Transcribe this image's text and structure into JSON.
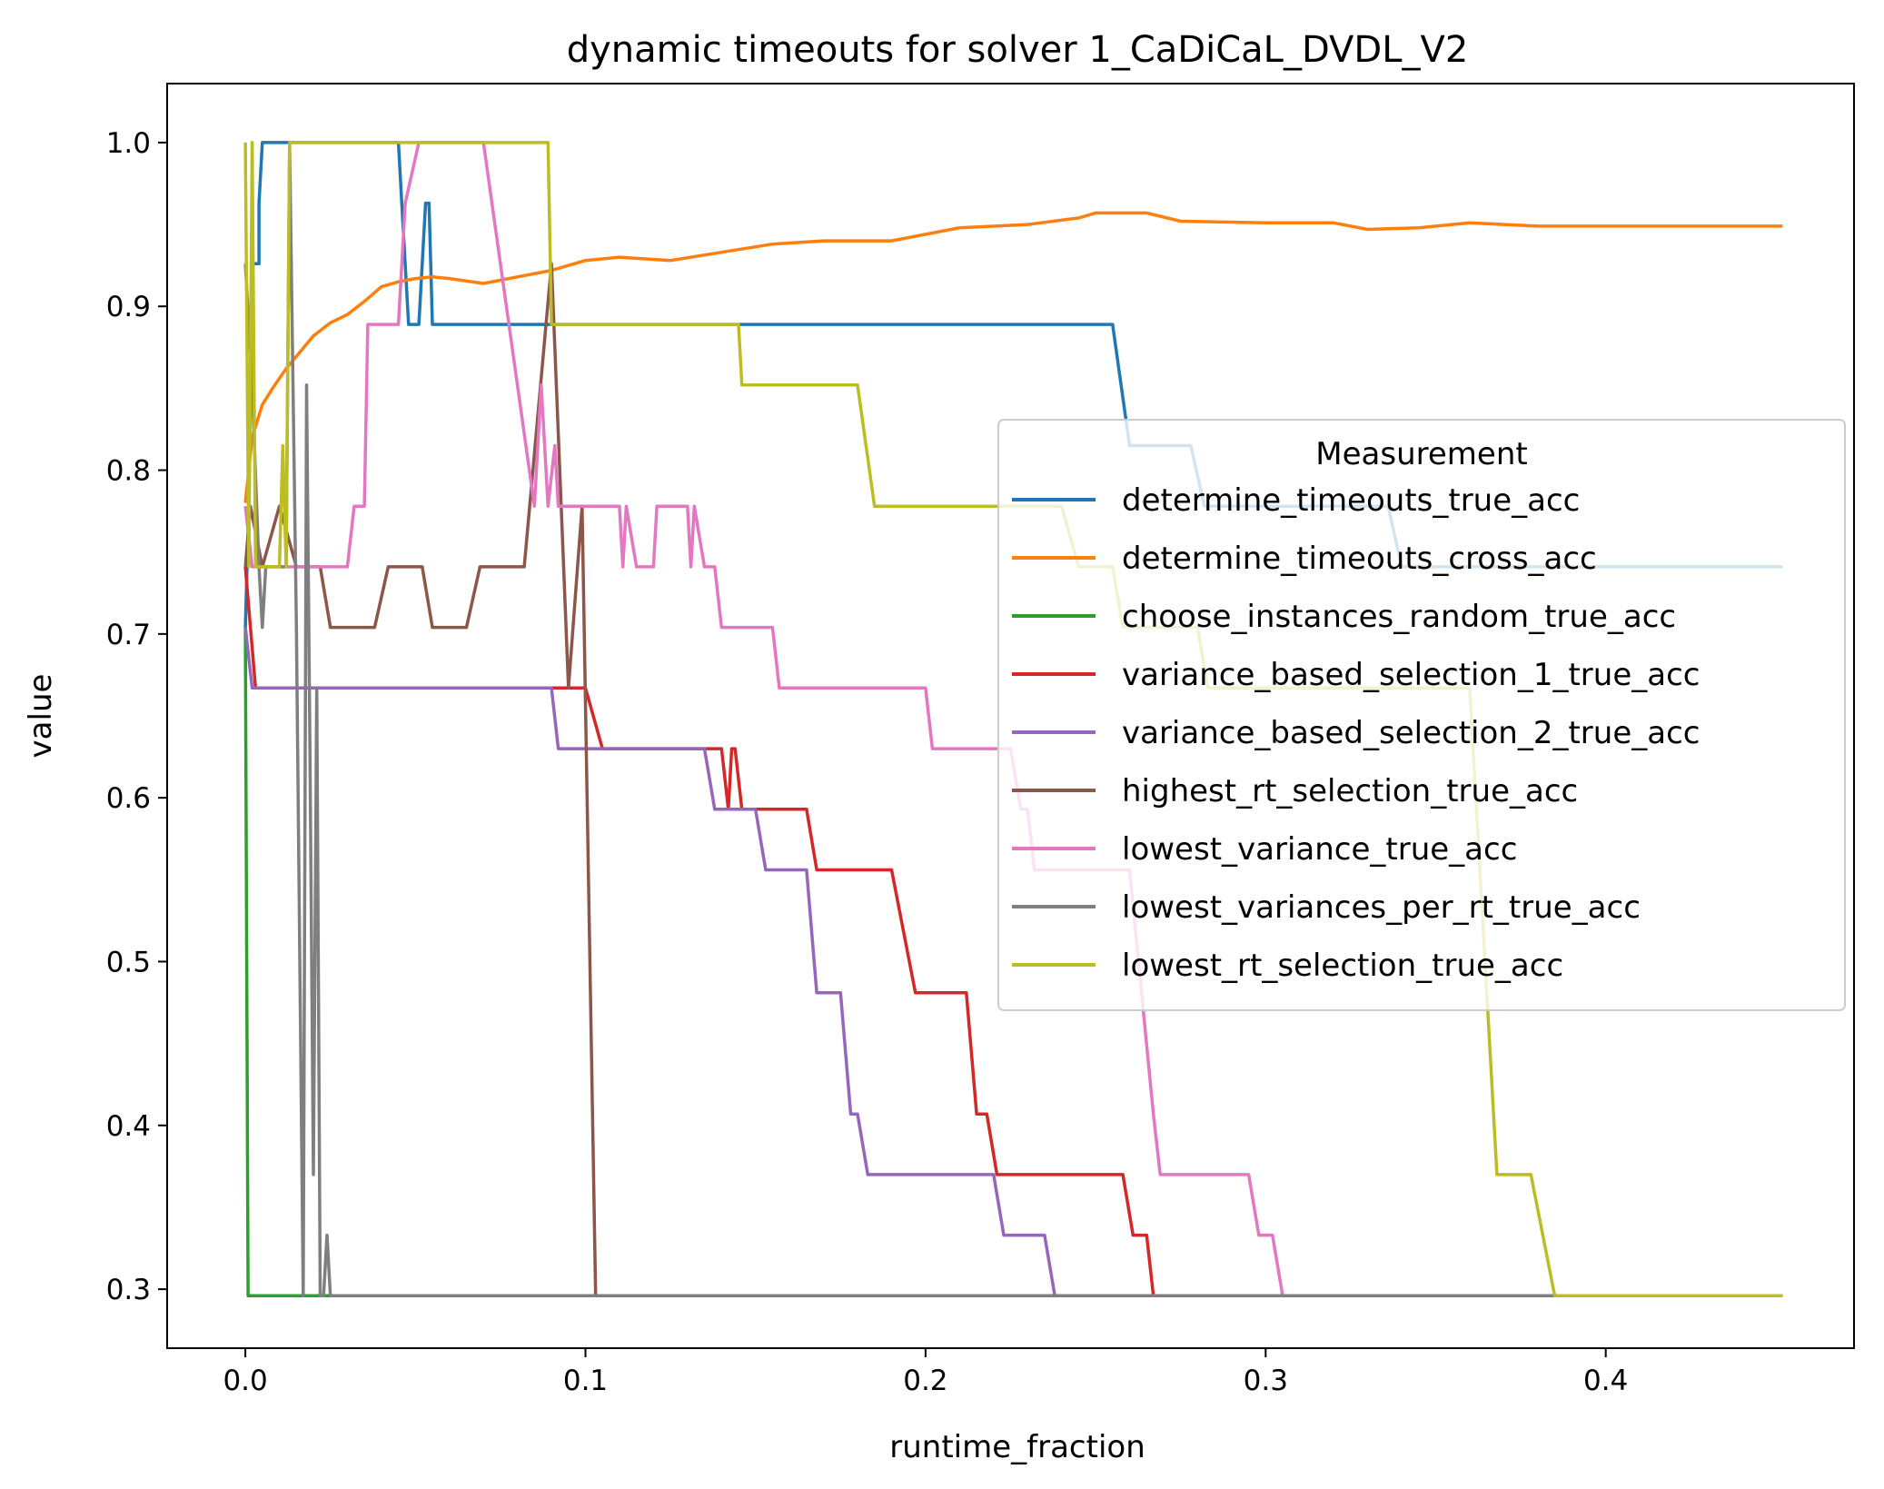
{
  "chart_data": {
    "type": "line",
    "title": "dynamic timeouts for solver 1_CaDiCaL_DVDL_V2",
    "xlabel": "runtime_fraction",
    "ylabel": "value",
    "xlim": [
      -0.023,
      0.473
    ],
    "ylim": [
      0.264,
      1.036
    ],
    "xticks": [
      0.0,
      0.1,
      0.2,
      0.3,
      0.4
    ],
    "xtick_labels": [
      "0.0",
      "0.1",
      "0.2",
      "0.3",
      "0.4"
    ],
    "yticks": [
      0.3,
      0.4,
      0.5,
      0.6,
      0.7,
      0.8,
      0.9,
      1.0
    ],
    "ytick_labels": [
      "0.3",
      "0.4",
      "0.5",
      "0.6",
      "0.7",
      "0.8",
      "0.9",
      "1.0"
    ],
    "grid": false,
    "legend": {
      "title": "Measurement",
      "placement": "center-right"
    },
    "series": [
      {
        "name": "determine_timeouts_true_acc",
        "color": "#1f77b4",
        "points": [
          [
            0,
            0.704
          ],
          [
            0.001,
            0.78
          ],
          [
            0.002,
            0.926
          ],
          [
            0.004,
            0.926
          ],
          [
            0.004,
            0.963
          ],
          [
            0.005,
            1.0
          ],
          [
            0.045,
            1.0
          ],
          [
            0.046,
            0.963
          ],
          [
            0.048,
            0.889
          ],
          [
            0.051,
            0.889
          ],
          [
            0.053,
            0.963
          ],
          [
            0.054,
            0.963
          ],
          [
            0.055,
            0.889
          ],
          [
            0.255,
            0.889
          ],
          [
            0.26,
            0.815
          ],
          [
            0.278,
            0.815
          ],
          [
            0.282,
            0.778
          ],
          [
            0.336,
            0.778
          ],
          [
            0.34,
            0.741
          ],
          [
            0.452,
            0.741
          ]
        ]
      },
      {
        "name": "determine_timeouts_cross_acc",
        "color": "#ff7f0e",
        "points": [
          [
            0,
            0.78
          ],
          [
            0.002,
            0.82
          ],
          [
            0.005,
            0.84
          ],
          [
            0.008,
            0.85
          ],
          [
            0.012,
            0.862
          ],
          [
            0.016,
            0.872
          ],
          [
            0.02,
            0.882
          ],
          [
            0.025,
            0.89
          ],
          [
            0.03,
            0.895
          ],
          [
            0.035,
            0.903
          ],
          [
            0.04,
            0.912
          ],
          [
            0.045,
            0.915
          ],
          [
            0.05,
            0.917
          ],
          [
            0.055,
            0.918
          ],
          [
            0.06,
            0.917
          ],
          [
            0.07,
            0.914
          ],
          [
            0.08,
            0.918
          ],
          [
            0.09,
            0.922
          ],
          [
            0.1,
            0.928
          ],
          [
            0.11,
            0.93
          ],
          [
            0.125,
            0.928
          ],
          [
            0.14,
            0.933
          ],
          [
            0.155,
            0.938
          ],
          [
            0.17,
            0.94
          ],
          [
            0.19,
            0.94
          ],
          [
            0.21,
            0.948
          ],
          [
            0.23,
            0.95
          ],
          [
            0.245,
            0.954
          ],
          [
            0.25,
            0.957
          ],
          [
            0.265,
            0.957
          ],
          [
            0.275,
            0.952
          ],
          [
            0.3,
            0.951
          ],
          [
            0.32,
            0.951
          ],
          [
            0.33,
            0.947
          ],
          [
            0.345,
            0.948
          ],
          [
            0.36,
            0.951
          ],
          [
            0.37,
            0.95
          ],
          [
            0.38,
            0.949
          ],
          [
            0.452,
            0.949
          ]
        ]
      },
      {
        "name": "choose_instances_random_true_acc",
        "color": "#2ca02c",
        "points": [
          [
            0,
            0.704
          ],
          [
            0.0008,
            0.296
          ],
          [
            0.452,
            0.296
          ]
        ]
      },
      {
        "name": "variance_based_selection_1_true_acc",
        "color": "#d62728",
        "points": [
          [
            0,
            0.741
          ],
          [
            0.0015,
            0.704
          ],
          [
            0.003,
            0.667
          ],
          [
            0.095,
            0.667
          ],
          [
            0.1,
            0.667
          ],
          [
            0.105,
            0.63
          ],
          [
            0.14,
            0.63
          ],
          [
            0.142,
            0.593
          ],
          [
            0.143,
            0.63
          ],
          [
            0.144,
            0.63
          ],
          [
            0.146,
            0.593
          ],
          [
            0.165,
            0.593
          ],
          [
            0.168,
            0.556
          ],
          [
            0.19,
            0.556
          ],
          [
            0.197,
            0.481
          ],
          [
            0.212,
            0.481
          ],
          [
            0.215,
            0.407
          ],
          [
            0.218,
            0.407
          ],
          [
            0.221,
            0.37
          ],
          [
            0.258,
            0.37
          ],
          [
            0.261,
            0.333
          ],
          [
            0.265,
            0.333
          ],
          [
            0.267,
            0.296
          ],
          [
            0.452,
            0.296
          ]
        ]
      },
      {
        "name": "variance_based_selection_2_true_acc",
        "color": "#9467bd",
        "points": [
          [
            0,
            0.704
          ],
          [
            0.002,
            0.667
          ],
          [
            0.09,
            0.667
          ],
          [
            0.092,
            0.63
          ],
          [
            0.135,
            0.63
          ],
          [
            0.138,
            0.593
          ],
          [
            0.15,
            0.593
          ],
          [
            0.153,
            0.556
          ],
          [
            0.165,
            0.556
          ],
          [
            0.168,
            0.481
          ],
          [
            0.175,
            0.481
          ],
          [
            0.178,
            0.407
          ],
          [
            0.18,
            0.407
          ],
          [
            0.183,
            0.37
          ],
          [
            0.22,
            0.37
          ],
          [
            0.223,
            0.333
          ],
          [
            0.235,
            0.333
          ],
          [
            0.238,
            0.296
          ],
          [
            0.452,
            0.296
          ]
        ]
      },
      {
        "name": "highest_rt_selection_true_acc",
        "color": "#8c564b",
        "points": [
          [
            0,
            0.741
          ],
          [
            0.0015,
            0.778
          ],
          [
            0.005,
            0.741
          ],
          [
            0.01,
            0.778
          ],
          [
            0.015,
            0.741
          ],
          [
            0.022,
            0.741
          ],
          [
            0.025,
            0.704
          ],
          [
            0.038,
            0.704
          ],
          [
            0.042,
            0.741
          ],
          [
            0.052,
            0.741
          ],
          [
            0.055,
            0.704
          ],
          [
            0.065,
            0.704
          ],
          [
            0.069,
            0.741
          ],
          [
            0.082,
            0.741
          ],
          [
            0.09,
            0.926
          ],
          [
            0.095,
            0.667
          ],
          [
            0.099,
            0.778
          ],
          [
            0.103,
            0.296
          ],
          [
            0.452,
            0.296
          ]
        ]
      },
      {
        "name": "lowest_variance_true_acc",
        "color": "#e377c2",
        "points": [
          [
            0,
            0.778
          ],
          [
            0.002,
            0.741
          ],
          [
            0.03,
            0.741
          ],
          [
            0.032,
            0.778
          ],
          [
            0.035,
            0.778
          ],
          [
            0.036,
            0.889
          ],
          [
            0.045,
            0.889
          ],
          [
            0.047,
            0.963
          ],
          [
            0.051,
            1.0
          ],
          [
            0.07,
            1.0
          ],
          [
            0.075,
            0.926
          ],
          [
            0.08,
            0.852
          ],
          [
            0.085,
            0.778
          ],
          [
            0.087,
            0.852
          ],
          [
            0.089,
            0.778
          ],
          [
            0.091,
            0.815
          ],
          [
            0.092,
            0.778
          ],
          [
            0.11,
            0.778
          ],
          [
            0.111,
            0.741
          ],
          [
            0.112,
            0.778
          ],
          [
            0.115,
            0.741
          ],
          [
            0.12,
            0.741
          ],
          [
            0.121,
            0.778
          ],
          [
            0.13,
            0.778
          ],
          [
            0.131,
            0.741
          ],
          [
            0.132,
            0.778
          ],
          [
            0.135,
            0.741
          ],
          [
            0.138,
            0.741
          ],
          [
            0.14,
            0.704
          ],
          [
            0.155,
            0.704
          ],
          [
            0.157,
            0.667
          ],
          [
            0.2,
            0.667
          ],
          [
            0.202,
            0.63
          ],
          [
            0.225,
            0.63
          ],
          [
            0.228,
            0.593
          ],
          [
            0.23,
            0.593
          ],
          [
            0.232,
            0.556
          ],
          [
            0.26,
            0.556
          ],
          [
            0.267,
            0.407
          ],
          [
            0.269,
            0.37
          ],
          [
            0.295,
            0.37
          ],
          [
            0.298,
            0.333
          ],
          [
            0.302,
            0.333
          ],
          [
            0.305,
            0.296
          ],
          [
            0.452,
            0.296
          ]
        ]
      },
      {
        "name": "lowest_variances_per_rt_true_acc",
        "color": "#7f7f7f",
        "points": [
          [
            0,
            0.926
          ],
          [
            0.002,
            0.852
          ],
          [
            0.004,
            0.741
          ],
          [
            0.005,
            0.704
          ],
          [
            0.006,
            0.741
          ],
          [
            0.007,
            0.741
          ],
          [
            0.008,
            0.741
          ],
          [
            0.009,
            0.741
          ],
          [
            0.01,
            0.741
          ],
          [
            0.011,
            0.741
          ],
          [
            0.012,
            0.741
          ],
          [
            0.013,
            1.0
          ],
          [
            0.015,
            0.704
          ],
          [
            0.017,
            0.296
          ],
          [
            0.018,
            0.852
          ],
          [
            0.019,
            0.63
          ],
          [
            0.02,
            0.37
          ],
          [
            0.021,
            0.667
          ],
          [
            0.022,
            0.296
          ],
          [
            0.023,
            0.296
          ],
          [
            0.024,
            0.333
          ],
          [
            0.025,
            0.296
          ],
          [
            0.452,
            0.296
          ]
        ]
      },
      {
        "name": "lowest_rt_selection_true_acc",
        "color": "#bcbd22",
        "points": [
          [
            0,
            1.0
          ],
          [
            0.001,
            0.741
          ],
          [
            0.002,
            1.0
          ],
          [
            0.003,
            0.741
          ],
          [
            0.01,
            0.741
          ],
          [
            0.011,
            0.815
          ],
          [
            0.012,
            0.741
          ],
          [
            0.013,
            1.0
          ],
          [
            0.089,
            1.0
          ],
          [
            0.09,
            0.889
          ],
          [
            0.145,
            0.889
          ],
          [
            0.146,
            0.852
          ],
          [
            0.18,
            0.852
          ],
          [
            0.185,
            0.778
          ],
          [
            0.24,
            0.778
          ],
          [
            0.245,
            0.741
          ],
          [
            0.255,
            0.741
          ],
          [
            0.258,
            0.704
          ],
          [
            0.28,
            0.704
          ],
          [
            0.283,
            0.667
          ],
          [
            0.36,
            0.667
          ],
          [
            0.365,
            0.481
          ],
          [
            0.368,
            0.37
          ],
          [
            0.378,
            0.37
          ],
          [
            0.385,
            0.296
          ],
          [
            0.452,
            0.296
          ]
        ]
      }
    ]
  }
}
